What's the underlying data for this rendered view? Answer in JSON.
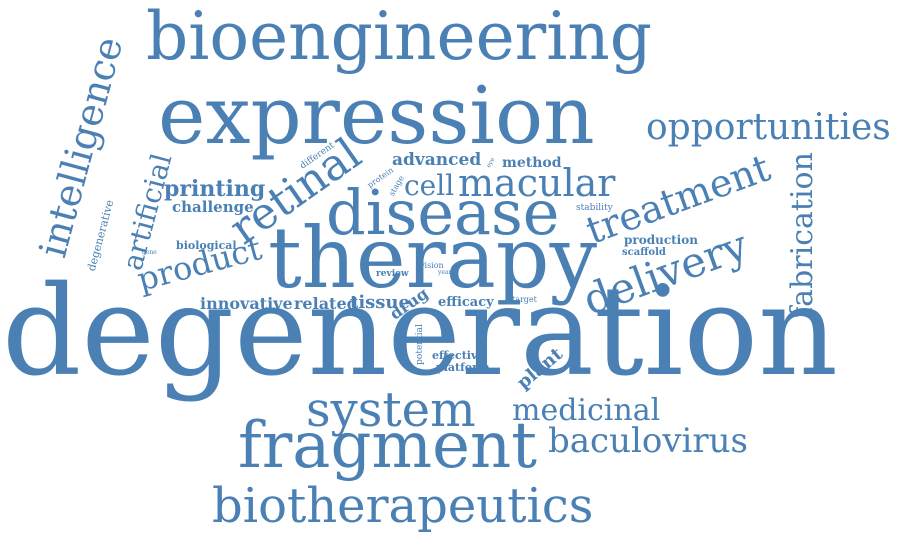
{
  "word_color": "#4a80b4",
  "background_color": "#ffffff",
  "words": [
    {
      "id": "degeneration",
      "text": "degeneration"
    },
    {
      "id": "therapy",
      "text": "therapy"
    },
    {
      "id": "expression",
      "text": "expression"
    },
    {
      "id": "bioengineering",
      "text": "bioengineering"
    },
    {
      "id": "disease",
      "text": "disease"
    },
    {
      "id": "system",
      "text": "system"
    },
    {
      "id": "fragment",
      "text": "fragment"
    },
    {
      "id": "biotherapeutics",
      "text": "biotherapeutics"
    },
    {
      "id": "opportunities",
      "text": "opportunities"
    },
    {
      "id": "intelligence",
      "text": "intelligence"
    },
    {
      "id": "retinal",
      "text": "retinal"
    },
    {
      "id": "treatment",
      "text": "treatment"
    },
    {
      "id": "delivery",
      "text": "delivery"
    },
    {
      "id": "macular",
      "text": "macular"
    },
    {
      "id": "baculovirus",
      "text": "baculovirus"
    },
    {
      "id": "medicinal",
      "text": "medicinal"
    },
    {
      "id": "fabrication",
      "text": "fabrication"
    },
    {
      "id": "product",
      "text": "product"
    },
    {
      "id": "artificial",
      "text": "artificial"
    },
    {
      "id": "cell",
      "text": "cell"
    },
    {
      "id": "printing",
      "text": "printing"
    },
    {
      "id": "advanced",
      "text": "advanced"
    },
    {
      "id": "method",
      "text": "method"
    },
    {
      "id": "challenge",
      "text": "challenge"
    },
    {
      "id": "innovative",
      "text": "innovative"
    },
    {
      "id": "related",
      "text": "related"
    },
    {
      "id": "tissue",
      "text": "tissue"
    },
    {
      "id": "drug",
      "text": "drug"
    },
    {
      "id": "efficacy",
      "text": "efficacy"
    },
    {
      "id": "plant",
      "text": "plant"
    },
    {
      "id": "effective",
      "text": "effective"
    },
    {
      "id": "platform",
      "text": "platform"
    },
    {
      "id": "production",
      "text": "production"
    },
    {
      "id": "scaffold",
      "text": "scaffold"
    },
    {
      "id": "stability",
      "text": "stability"
    },
    {
      "id": "biological",
      "text": "biological"
    },
    {
      "id": "degenerative",
      "text": "degenerative"
    },
    {
      "id": "different",
      "text": "different"
    },
    {
      "id": "protein",
      "text": "protein"
    },
    {
      "id": "stage",
      "text": "stage"
    },
    {
      "id": "review",
      "text": "review"
    },
    {
      "id": "vision",
      "text": "vision"
    },
    {
      "id": "potential",
      "text": "potential"
    },
    {
      "id": "target",
      "text": "target"
    },
    {
      "id": "tiny1",
      "text": "eye"
    },
    {
      "id": "tiny2",
      "text": "year"
    },
    {
      "id": "tiny3",
      "text": "gene"
    }
  ]
}
